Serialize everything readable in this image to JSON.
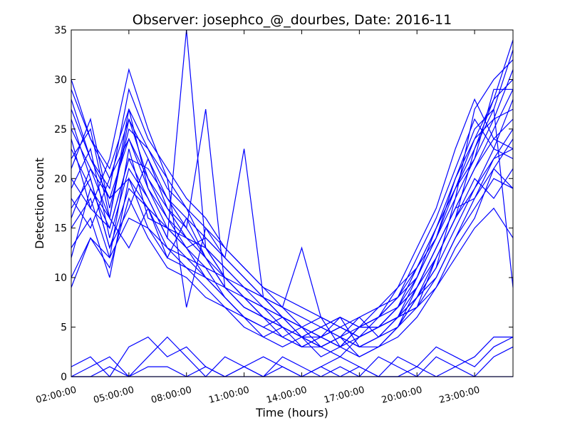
{
  "chart_data": {
    "type": "line",
    "title": "Observer: josephco_@_dourbes, Date: 2016-11",
    "xlabel": "Time (hours)",
    "ylabel": "Detection count",
    "xlim": [
      2,
      25
    ],
    "ylim": [
      0,
      35
    ],
    "x_tick_values": [
      2,
      5,
      8,
      11,
      14,
      17,
      20,
      23
    ],
    "x_tick_labels": [
      "02:00:00",
      "05:00:00",
      "08:00:00",
      "11:00:00",
      "14:00:00",
      "17:00:00",
      "20:00:00",
      "23:00:00"
    ],
    "y_ticks": [
      0,
      5,
      10,
      15,
      20,
      25,
      30,
      35
    ],
    "grid": false,
    "line_color": "#0000ff",
    "x": [
      2,
      3,
      4,
      5,
      6,
      7,
      8,
      9,
      10,
      11,
      12,
      13,
      14,
      15,
      16,
      17,
      18,
      19,
      20,
      21,
      22,
      23,
      24,
      25
    ],
    "series": [
      {
        "values": [
          30,
          24,
          20,
          26,
          22,
          17,
          15,
          12,
          10,
          8,
          6,
          5,
          4,
          3,
          4,
          5,
          6,
          8,
          10,
          14,
          18,
          22,
          26,
          31
        ]
      },
      {
        "values": [
          28,
          22,
          18,
          24,
          20,
          16,
          14,
          13,
          11,
          9,
          7,
          6,
          5,
          4,
          3,
          4,
          5,
          7,
          11,
          15,
          19,
          24,
          28,
          34
        ]
      },
      {
        "values": [
          25,
          21,
          16,
          27,
          19,
          15,
          13,
          14,
          12,
          10,
          8,
          7,
          6,
          5,
          4,
          3,
          4,
          6,
          9,
          13,
          17,
          21,
          25,
          29
        ]
      },
      {
        "values": [
          23,
          19,
          15,
          22,
          21,
          18,
          16,
          12,
          9,
          7,
          6,
          5,
          4,
          4,
          5,
          4,
          5,
          7,
          10,
          14,
          20,
          25,
          27,
          33
        ]
      },
      {
        "values": [
          21,
          26,
          17,
          25,
          23,
          19,
          17,
          15,
          13,
          11,
          9,
          7,
          5,
          3,
          4,
          6,
          7,
          8,
          12,
          16,
          21,
          26,
          23,
          28
        ]
      },
      {
        "values": [
          19,
          23,
          14,
          21,
          18,
          14,
          12,
          10,
          8,
          6,
          5,
          4,
          5,
          6,
          3,
          5,
          6,
          9,
          13,
          17,
          23,
          28,
          24,
          26
        ]
      },
      {
        "values": [
          17,
          20,
          13,
          19,
          17,
          13,
          11,
          9,
          7,
          5,
          4,
          3,
          4,
          5,
          6,
          3,
          4,
          6,
          8,
          11,
          15,
          19,
          22,
          23
        ]
      },
      {
        "values": [
          15,
          18,
          12,
          23,
          16,
          15,
          14,
          13,
          10,
          8,
          7,
          6,
          4,
          3,
          2,
          4,
          5,
          6,
          7,
          10,
          14,
          17,
          20,
          19
        ]
      },
      {
        "values": [
          13,
          16,
          10,
          20,
          15,
          12,
          11,
          10,
          9,
          7,
          6,
          5,
          3,
          4,
          3,
          2,
          3,
          5,
          8,
          12,
          16,
          20,
          18,
          21
        ]
      },
      {
        "values": [
          10,
          14,
          11,
          18,
          14,
          11,
          10,
          8,
          7,
          6,
          5,
          4,
          3,
          3,
          4,
          3,
          3,
          4,
          6,
          9,
          13,
          16,
          21,
          24
        ]
      },
      {
        "values": [
          27,
          22,
          19,
          29,
          24,
          21,
          18,
          16,
          13,
          11,
          9,
          8,
          7,
          6,
          5,
          4,
          5,
          7,
          9,
          12,
          16,
          23,
          28,
          30
        ]
      },
      {
        "values": [
          24,
          17,
          22,
          31,
          25,
          20,
          17,
          13,
          11,
          9,
          8,
          6,
          5,
          4,
          5,
          6,
          4,
          5,
          8,
          11,
          18,
          27,
          30,
          32
        ]
      },
      {
        "values": [
          22,
          25,
          16,
          26,
          20,
          17,
          14,
          12,
          9,
          8,
          7,
          5,
          4,
          5,
          6,
          5,
          5,
          6,
          10,
          15,
          20,
          24,
          26,
          27
        ]
      },
      {
        "values": [
          18,
          15,
          20,
          24,
          19,
          16,
          13,
          11,
          8,
          6,
          5,
          6,
          5,
          4,
          3,
          5,
          6,
          7,
          9,
          13,
          17,
          18,
          22,
          25
        ]
      },
      {
        "values": [
          26,
          20,
          13,
          17,
          22,
          18,
          15,
          27,
          9,
          7,
          6,
          4,
          3,
          4,
          5,
          4,
          6,
          8,
          11,
          14,
          19,
          22,
          29,
          29
        ]
      },
      {
        "values": [
          20,
          17,
          15,
          22,
          18,
          14,
          35,
          13,
          10,
          8,
          6,
          5,
          4,
          5,
          4,
          3,
          4,
          5,
          7,
          12,
          16,
          19,
          23,
          22
        ]
      },
      {
        "values": [
          16,
          21,
          18,
          20,
          17,
          12,
          16,
          14,
          12,
          23,
          8,
          6,
          5,
          4,
          6,
          5,
          5,
          6,
          8,
          10,
          14,
          18,
          21,
          19
        ]
      },
      {
        "values": [
          9,
          14,
          12,
          16,
          15,
          13,
          12,
          11,
          10,
          9,
          8,
          7,
          13,
          6,
          5,
          4,
          5,
          6,
          7,
          9,
          12,
          15,
          17,
          14
        ]
      },
      {
        "values": [
          29,
          24,
          21,
          27,
          23,
          20,
          7,
          15,
          12,
          10,
          8,
          6,
          4,
          2,
          3,
          5,
          7,
          9,
          11,
          15,
          19,
          23,
          27,
          9
        ]
      },
      {
        "values": [
          12,
          19,
          16,
          13,
          17,
          15,
          13,
          10,
          8,
          6,
          4,
          5,
          4,
          3,
          4,
          2,
          3,
          5,
          9,
          13,
          17,
          21,
          24,
          23
        ]
      },
      {
        "values": [
          1,
          2,
          0,
          3,
          4,
          2,
          3,
          1,
          0,
          1,
          2,
          1,
          0,
          1,
          2,
          1,
          0,
          2,
          1,
          3,
          2,
          1,
          3,
          4
        ]
      },
      {
        "values": [
          0,
          1,
          2,
          0,
          2,
          4,
          2,
          0,
          2,
          1,
          0,
          2,
          1,
          0,
          1,
          0,
          2,
          1,
          0,
          2,
          1,
          2,
          4,
          4
        ]
      },
      {
        "values": [
          0,
          0,
          1,
          0,
          1,
          1,
          0,
          1,
          0,
          1,
          0,
          1,
          0,
          1,
          0,
          1,
          0,
          0,
          1,
          0,
          1,
          0,
          2,
          3
        ]
      },
      {
        "values": [
          0,
          0,
          0,
          0,
          0,
          0,
          0,
          0,
          0,
          0,
          0,
          0,
          0,
          0,
          0,
          0,
          0,
          0,
          0,
          0,
          0,
          0,
          0,
          0
        ]
      }
    ]
  }
}
